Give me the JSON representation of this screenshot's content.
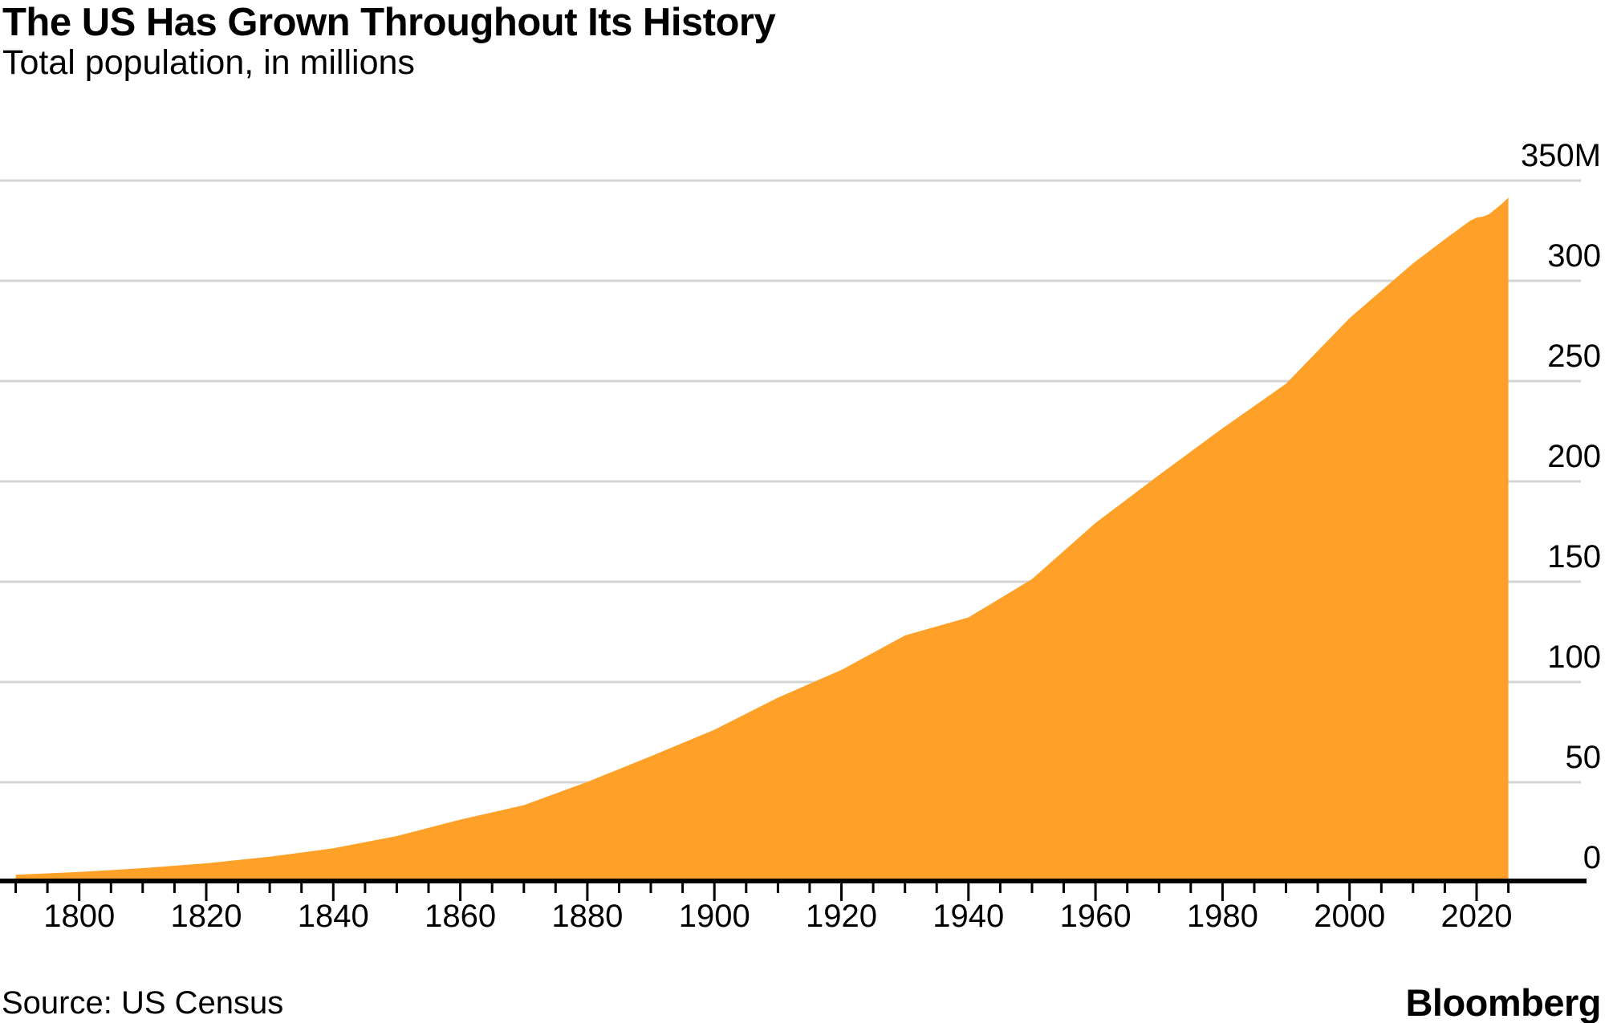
{
  "header": {
    "title": "The US Has Grown Throughout Its History",
    "subtitle": "Total population, in millions"
  },
  "footer": {
    "source": "Source: US Census",
    "brand": "Bloomberg"
  },
  "chart_data": {
    "type": "area",
    "title": "The US Has Grown Throughout Its History",
    "subtitle": "Total population, in millions",
    "ylabel": "Total population, in millions",
    "xlabel": "",
    "grid": "horizontal",
    "legend": "none",
    "y_axis_side": "right",
    "xlim": [
      1790,
      2025
    ],
    "ylim": [
      0,
      350
    ],
    "colors": {
      "area": "#FFA028",
      "grid": "#D4D4D4",
      "axis": "#000000",
      "text": "#000000",
      "background": "#FFFFFF"
    },
    "y_axis": {
      "ticks": [
        {
          "value": 0,
          "label": "0"
        },
        {
          "value": 50,
          "label": "50"
        },
        {
          "value": 100,
          "label": "100"
        },
        {
          "value": 150,
          "label": "150"
        },
        {
          "value": 200,
          "label": "200"
        },
        {
          "value": 250,
          "label": "250"
        },
        {
          "value": 300,
          "label": "300"
        },
        {
          "value": 350,
          "label": "350M"
        }
      ]
    },
    "x_axis": {
      "major_ticks": [
        {
          "year": 1800,
          "label": "1800"
        },
        {
          "year": 1820,
          "label": "1820"
        },
        {
          "year": 1840,
          "label": "1840"
        },
        {
          "year": 1860,
          "label": "1860"
        },
        {
          "year": 1880,
          "label": "1880"
        },
        {
          "year": 1900,
          "label": "1900"
        },
        {
          "year": 1920,
          "label": "1920"
        },
        {
          "year": 1940,
          "label": "1940"
        },
        {
          "year": 1960,
          "label": "1960"
        },
        {
          "year": 1980,
          "label": "1980"
        },
        {
          "year": 2000,
          "label": "2000"
        },
        {
          "year": 2020,
          "label": "2020"
        }
      ],
      "minor_tick_step_years": 5,
      "range": [
        1790,
        2025
      ]
    },
    "series": [
      {
        "name": "US total population (millions)",
        "points": [
          [
            1790,
            3.9
          ],
          [
            1800,
            5.3
          ],
          [
            1810,
            7.2
          ],
          [
            1820,
            9.6
          ],
          [
            1830,
            12.9
          ],
          [
            1840,
            17.1
          ],
          [
            1850,
            23.2
          ],
          [
            1860,
            31.4
          ],
          [
            1870,
            38.6
          ],
          [
            1880,
            50.2
          ],
          [
            1890,
            63.0
          ],
          [
            1900,
            76.2
          ],
          [
            1910,
            92.2
          ],
          [
            1920,
            106.0
          ],
          [
            1930,
            123.2
          ],
          [
            1940,
            132.2
          ],
          [
            1950,
            151.3
          ],
          [
            1960,
            179.3
          ],
          [
            1970,
            203.2
          ],
          [
            1980,
            226.5
          ],
          [
            1990,
            248.7
          ],
          [
            2000,
            281.4
          ],
          [
            2010,
            308.7
          ],
          [
            2015,
            320.7
          ],
          [
            2019,
            330.0
          ],
          [
            2020,
            331.5
          ],
          [
            2021,
            332.0
          ],
          [
            2022,
            333.3
          ],
          [
            2023,
            335.8
          ],
          [
            2024,
            338.5
          ],
          [
            2025,
            341.5
          ]
        ]
      }
    ]
  }
}
